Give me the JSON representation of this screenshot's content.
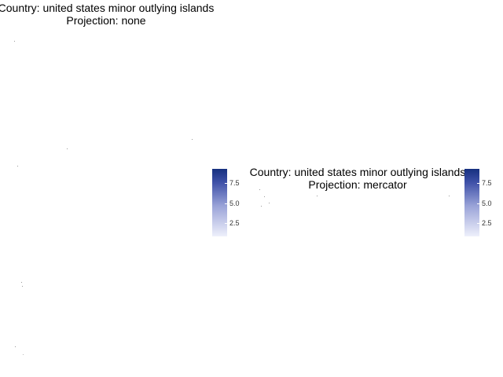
{
  "maps": [
    {
      "title_line1": "Country: united states minor outlying islands",
      "title_line2": "Projection: none",
      "legend": {
        "ticks": [
          "7.5",
          "5.0",
          "2.5"
        ],
        "colors": [
          "#eef0fb",
          "#16307f"
        ]
      }
    },
    {
      "title_line1": "Country: united states minor outlying islands",
      "title_line2": "Projection: mercator",
      "legend": {
        "ticks": [
          "7.5",
          "5.0",
          "2.5"
        ],
        "colors": [
          "#eef0fb",
          "#16307f"
        ]
      }
    }
  ]
}
